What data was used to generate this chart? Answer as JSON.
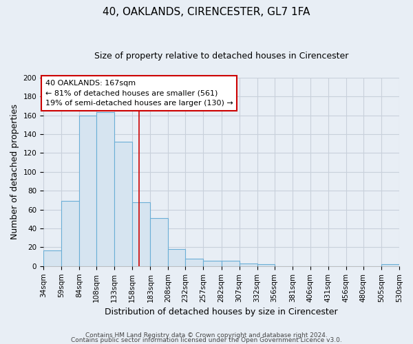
{
  "title": "40, OAKLANDS, CIRENCESTER, GL7 1FA",
  "subtitle": "Size of property relative to detached houses in Cirencester",
  "xlabel": "Distribution of detached houses by size in Cirencester",
  "ylabel": "Number of detached properties",
  "bin_edges": [
    34,
    59,
    84,
    108,
    133,
    158,
    183,
    208,
    232,
    257,
    282,
    307,
    332,
    356,
    381,
    406,
    431,
    456,
    480,
    505,
    530
  ],
  "bar_heights": [
    17,
    69,
    160,
    163,
    132,
    68,
    51,
    18,
    8,
    6,
    6,
    3,
    2,
    0,
    0,
    0,
    0,
    0,
    0,
    2
  ],
  "bar_color": "#d6e4f0",
  "bar_edge_color": "#6aaed6",
  "red_line_x": 167,
  "ylim": [
    0,
    200
  ],
  "yticks": [
    0,
    20,
    40,
    60,
    80,
    100,
    120,
    140,
    160,
    180,
    200
  ],
  "annotation_title": "40 OAKLANDS: 167sqm",
  "annotation_line1": "← 81% of detached houses are smaller (561)",
  "annotation_line2": "19% of semi-detached houses are larger (130) →",
  "annotation_box_facecolor": "#ffffff",
  "annotation_box_edgecolor": "#cc0000",
  "footer_line1": "Contains HM Land Registry data © Crown copyright and database right 2024.",
  "footer_line2": "Contains public sector information licensed under the Open Government Licence v3.0.",
  "background_color": "#e8eef5",
  "grid_color": "#c8d0db",
  "title_fontsize": 11,
  "subtitle_fontsize": 9,
  "axis_label_fontsize": 9,
  "tick_fontsize": 7.5,
  "annotation_fontsize": 8,
  "footer_fontsize": 6.5
}
